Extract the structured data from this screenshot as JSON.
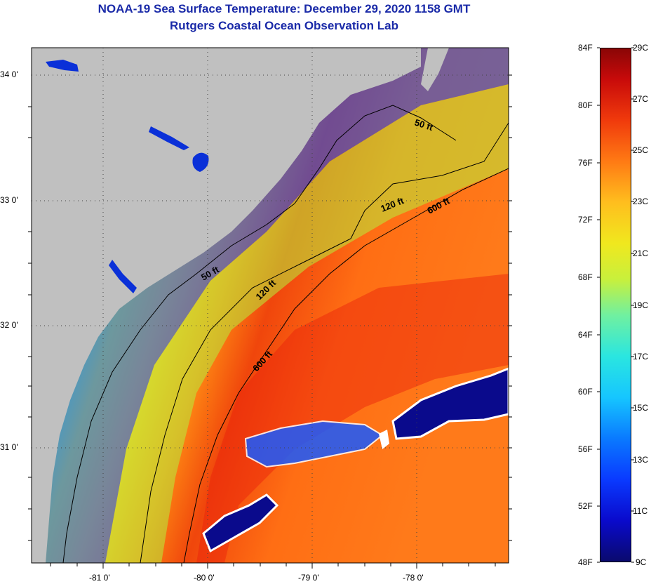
{
  "header": {
    "title": "NOAA-19 Sea Surface Temperature:  December 29, 2020 1158 GMT",
    "subtitle": "Rutgers Coastal Ocean Observation Lab"
  },
  "map": {
    "lat_ticks": [
      "34 0'",
      "33 0'",
      "32 0'",
      "31 0'"
    ],
    "lon_ticks": [
      "-81 0'",
      "-80 0'",
      "-79 0'",
      "-78 0'"
    ],
    "contour_labels": [
      "50 ft",
      "120 ft",
      "600 ft",
      "50 ft",
      "120 ft",
      "600 ft"
    ],
    "colors": {
      "land": "#c0c0c0",
      "cloud": "#0a0a8c",
      "contour": "#000000"
    }
  },
  "colorbar": {
    "f_labels": [
      "84F",
      "80F",
      "76F",
      "72F",
      "68F",
      "64F",
      "60F",
      "56F",
      "52F",
      "48F"
    ],
    "c_labels": [
      "29C",
      "27C",
      "25C",
      "23C",
      "21C",
      "19C",
      "17C",
      "15C",
      "13C",
      "11C",
      "9C"
    ]
  }
}
